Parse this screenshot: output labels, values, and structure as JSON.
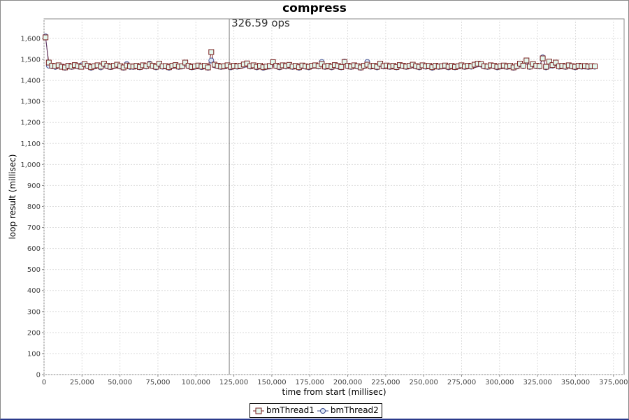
{
  "chart_data": {
    "type": "line",
    "title": "compress",
    "xlabel": "time from start (millisec)",
    "ylabel": "loop result (millisec)",
    "xlim": [
      0,
      382000
    ],
    "ylim": [
      0,
      1693
    ],
    "xticks": [
      0,
      25000,
      50000,
      75000,
      100000,
      125000,
      150000,
      175000,
      200000,
      225000,
      250000,
      275000,
      300000,
      325000,
      350000,
      375000
    ],
    "xtick_labels": [
      "0",
      "25,000",
      "50,000",
      "75,000",
      "100,000",
      "125,000",
      "150,000",
      "175,000",
      "200,000",
      "225,000",
      "250,000",
      "275,000",
      "300,000",
      "325,000",
      "350,000",
      "375,000"
    ],
    "yticks": [
      0,
      100,
      200,
      300,
      400,
      500,
      600,
      700,
      800,
      900,
      1000,
      1100,
      1200,
      1300,
      1400,
      1500,
      1600
    ],
    "ytick_labels": [
      "0",
      "100",
      "200",
      "300",
      "400",
      "500",
      "600",
      "700",
      "800",
      "900",
      "1,000",
      "1,100",
      "1,200",
      "1,300",
      "1,400",
      "1,500",
      "1,600"
    ],
    "grid": true,
    "legend_position": "bottom",
    "marker_line": {
      "x": 122000,
      "label": "326.59 ops",
      "color": "#808080"
    },
    "x": [
      1000,
      3140,
      5280,
      7420,
      9560,
      11700,
      13840,
      15980,
      18120,
      20260,
      22400,
      24540,
      26680,
      28820,
      30960,
      33100,
      35240,
      37380,
      39520,
      41660,
      43800,
      45940,
      48080,
      50220,
      52360,
      54500,
      56640,
      58780,
      60920,
      63060,
      65200,
      67340,
      69480,
      71620,
      73760,
      75900,
      78040,
      80180,
      82320,
      84460,
      86600,
      88740,
      90880,
      93020,
      95160,
      97300,
      99440,
      101580,
      103720,
      105860,
      108000,
      110140,
      112280,
      114420,
      116560,
      118700,
      120840,
      122980,
      125120,
      127260,
      129400,
      131540,
      133680,
      135820,
      137960,
      140100,
      142240,
      144380,
      146520,
      148660,
      150800,
      152940,
      155080,
      157220,
      159360,
      161500,
      163640,
      165780,
      167920,
      170060,
      172200,
      174340,
      176480,
      178620,
      180760,
      182900,
      185040,
      187180,
      189320,
      191460,
      193600,
      195740,
      197880,
      200020,
      202160,
      204300,
      206440,
      208580,
      210720,
      212860,
      215000,
      217140,
      219280,
      221420,
      223560,
      225700,
      227840,
      229980,
      232120,
      234260,
      236400,
      238540,
      240680,
      242820,
      244960,
      247100,
      249240,
      251380,
      253520,
      255660,
      257800,
      259940,
      262080,
      264220,
      266360,
      268500,
      270640,
      272780,
      274920,
      277060,
      279200,
      281340,
      283480,
      285620,
      287760,
      289900,
      292040,
      294180,
      296320,
      298460,
      300600,
      302740,
      304880,
      307020,
      309160,
      311300,
      313440,
      315580,
      317720,
      319860,
      322000,
      324140,
      326280,
      328420,
      330560,
      332700,
      334840,
      336980,
      339120,
      341260,
      343400,
      345540,
      347680,
      349820,
      351960,
      354100,
      356240,
      358380,
      360520,
      362660
    ],
    "series": [
      {
        "name": "bmThread1",
        "marker": "square",
        "line_color": "#7a2020",
        "fill": "#e4f8ee",
        "values": [
          1605,
          1485,
          1470,
          1468,
          1472,
          1465,
          1462,
          1470,
          1466,
          1473,
          1468,
          1465,
          1478,
          1470,
          1463,
          1468,
          1472,
          1466,
          1480,
          1470,
          1465,
          1470,
          1475,
          1468,
          1462,
          1471,
          1467,
          1466,
          1470,
          1464,
          1472,
          1468,
          1476,
          1470,
          1465,
          1480,
          1467,
          1469,
          1463,
          1470,
          1473,
          1466,
          1468,
          1485,
          1470,
          1464,
          1467,
          1471,
          1466,
          1470,
          1462,
          1535,
          1475,
          1470,
          1466,
          1468,
          1472,
          1465,
          1470,
          1467,
          1470,
          1476,
          1481,
          1468,
          1472,
          1465,
          1470,
          1463,
          1466,
          1469,
          1487,
          1470,
          1465,
          1472,
          1468,
          1474,
          1466,
          1470,
          1463,
          1471,
          1467,
          1465,
          1470,
          1472,
          1468,
          1478,
          1466,
          1470,
          1465,
          1473,
          1469,
          1464,
          1488,
          1470,
          1466,
          1472,
          1468,
          1462,
          1470,
          1475,
          1467,
          1470,
          1465,
          1480,
          1468,
          1471,
          1466,
          1470,
          1464,
          1473,
          1470,
          1466,
          1470,
          1475,
          1468,
          1465,
          1472,
          1467,
          1470,
          1463,
          1470,
          1466,
          1468,
          1471,
          1465,
          1470,
          1464,
          1468,
          1472,
          1466,
          1470,
          1467,
          1475,
          1480,
          1478,
          1468,
          1466,
          1472,
          1470,
          1465,
          1468,
          1471,
          1466,
          1470,
          1462,
          1468,
          1480,
          1470,
          1495,
          1466,
          1478,
          1470,
          1468,
          1505,
          1465,
          1490,
          1473,
          1485,
          1467,
          1470,
          1466,
          1472,
          1468,
          1465,
          1470,
          1467,
          1469,
          1466,
          1468,
          1467
        ]
      },
      {
        "name": "bmThread2",
        "marker": "circle",
        "line_color": "#5a3a6a",
        "fill": "#dde8f8",
        "values": [
          1610,
          1470,
          1468,
          1464,
          1470,
          1466,
          1460,
          1468,
          1464,
          1470,
          1466,
          1472,
          1476,
          1468,
          1460,
          1466,
          1470,
          1462,
          1475,
          1468,
          1463,
          1468,
          1472,
          1466,
          1460,
          1478,
          1464,
          1464,
          1468,
          1462,
          1470,
          1466,
          1480,
          1468,
          1462,
          1475,
          1465,
          1466,
          1460,
          1468,
          1470,
          1464,
          1466,
          1478,
          1468,
          1462,
          1465,
          1468,
          1463,
          1468,
          1460,
          1495,
          1472,
          1468,
          1464,
          1466,
          1470,
          1462,
          1468,
          1465,
          1468,
          1472,
          1475,
          1466,
          1470,
          1462,
          1468,
          1460,
          1464,
          1466,
          1480,
          1468,
          1462,
          1470,
          1466,
          1470,
          1464,
          1468,
          1460,
          1468,
          1465,
          1462,
          1468,
          1470,
          1466,
          1488,
          1464,
          1468,
          1462,
          1470,
          1466,
          1462,
          1490,
          1468,
          1464,
          1470,
          1466,
          1460,
          1468,
          1488,
          1465,
          1468,
          1462,
          1478,
          1466,
          1468,
          1464,
          1468,
          1462,
          1470,
          1468,
          1464,
          1468,
          1472,
          1466,
          1462,
          1470,
          1465,
          1468,
          1460,
          1468,
          1464,
          1466,
          1468,
          1462,
          1468,
          1462,
          1466,
          1470,
          1464,
          1468,
          1465,
          1472,
          1476,
          1475,
          1466,
          1464,
          1470,
          1468,
          1462,
          1466,
          1468,
          1464,
          1468,
          1460,
          1466,
          1476,
          1468,
          1488,
          1464,
          1476,
          1468,
          1466,
          1510,
          1462,
          1470,
          1470,
          1482,
          1465,
          1468,
          1464,
          1470,
          1466,
          1462,
          1468,
          1465,
          1466,
          1464,
          1466,
          1465
        ]
      }
    ]
  }
}
